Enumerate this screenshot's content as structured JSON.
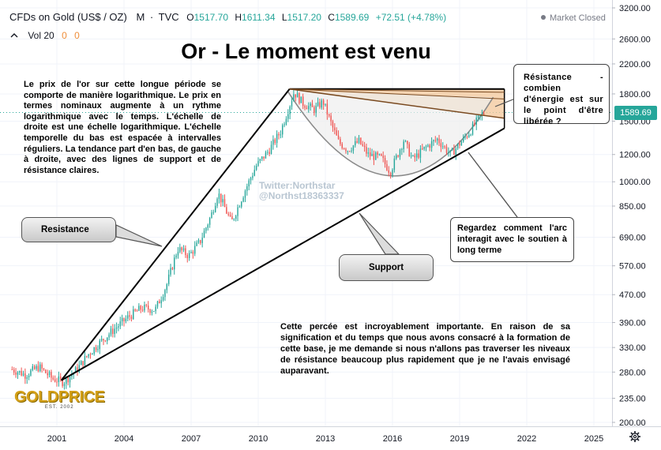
{
  "header": {
    "symbol": "CFDs on Gold (US$ / OZ)",
    "interval": "M",
    "source": "TVC",
    "open_label": "O",
    "open": "1517.70",
    "high_label": "H",
    "high": "1611.34",
    "low_label": "L",
    "low": "1517.20",
    "close_label": "C",
    "close": "1589.69",
    "change": "+72.51 (+4.78%)",
    "market_status": "Market Closed"
  },
  "volume": {
    "label": "Vol 20",
    "v1": "0",
    "v2": "0"
  },
  "annotations": {
    "title": "Or - Le moment est venu",
    "intro": "Le prix de l'or sur cette longue période se comporte de manière logarithmique. Le prix en termes nominaux augmente à un rythme logarithmique avec le temps. L'échelle de droite est une échelle logarithmique. L'échelle temporelle du bas est espacée à intervalles réguliers. La tendance part d'en bas, de gauche à droite, avec des lignes de support et de résistance claires.",
    "resistance_callout": "Resistance",
    "support_callout": "Support",
    "resistance_box": "Résistance - combien d'énergie est sur le point d'être libérée ?",
    "arc_box": "Regardez comment l'arc interagit avec le soutien à long terme",
    "breakout_text": "Cette percée est incroyablement importante. En raison de sa signification et du temps que nous avons consacré à la formation de cette base, je me demande si nous n'allons pas traverser les niveaux de résistance beaucoup plus rapidement que je ne l'avais envisagé auparavant.",
    "watermark_line1": "Twitter:Northstar",
    "watermark_line2": "@Northst18363337"
  },
  "logo": {
    "word": "GOLDPRICE",
    "est": "EST. 2002"
  },
  "colors": {
    "up": "#26a69a",
    "down": "#ef5350",
    "zone_fill": "#f3c79a",
    "line": "#000000"
  },
  "chart_data": {
    "type": "candlestick",
    "timeframe": "monthly",
    "y_scale": "log",
    "ylim": [
      200,
      3200
    ],
    "y_ticks": [
      3200,
      2600,
      2200,
      1800,
      1500,
      1200,
      1000,
      850,
      690,
      570,
      470,
      390,
      330,
      280,
      235,
      200
    ],
    "y_tick_labels": [
      "3200.00",
      "2600.00",
      "2200.00",
      "1800.00",
      "1500.00",
      "1200.00",
      "1000.00",
      "850.00",
      "690.00",
      "570.00",
      "470.00",
      "390.00",
      "330.00",
      "280.00",
      "235.00",
      "200.00"
    ],
    "x_ticks": [
      2001,
      2004,
      2007,
      2010,
      2013,
      2016,
      2019,
      2022,
      2025
    ],
    "xlim": [
      1999.0,
      2025.6
    ],
    "last_price": "1589.69",
    "price_anchors": [
      [
        1999.0,
        285
      ],
      [
        1999.6,
        275
      ],
      [
        2000.2,
        290
      ],
      [
        2000.8,
        268
      ],
      [
        2001.3,
        262
      ],
      [
        2001.9,
        285
      ],
      [
        2002.4,
        315
      ],
      [
        2003.0,
        345
      ],
      [
        2003.6,
        375
      ],
      [
        2004.2,
        405
      ],
      [
        2004.8,
        430
      ],
      [
        2005.4,
        425
      ],
      [
        2005.9,
        500
      ],
      [
        2006.4,
        640
      ],
      [
        2006.9,
        610
      ],
      [
        2007.4,
        670
      ],
      [
        2007.9,
        800
      ],
      [
        2008.2,
        930
      ],
      [
        2008.8,
        760
      ],
      [
        2009.3,
        910
      ],
      [
        2009.9,
        1110
      ],
      [
        2010.5,
        1240
      ],
      [
        2011.0,
        1400
      ],
      [
        2011.6,
        1820
      ],
      [
        2012.0,
        1690
      ],
      [
        2012.5,
        1620
      ],
      [
        2012.9,
        1710
      ],
      [
        2013.3,
        1450
      ],
      [
        2013.6,
        1300
      ],
      [
        2014.0,
        1240
      ],
      [
        2014.5,
        1310
      ],
      [
        2014.9,
        1200
      ],
      [
        2015.5,
        1170
      ],
      [
        2015.9,
        1070
      ],
      [
        2016.5,
        1320
      ],
      [
        2016.9,
        1160
      ],
      [
        2017.5,
        1260
      ],
      [
        2018.0,
        1330
      ],
      [
        2018.6,
        1200
      ],
      [
        2019.0,
        1290
      ],
      [
        2019.5,
        1410
      ],
      [
        2019.8,
        1510
      ],
      [
        2020.1,
        1590
      ]
    ],
    "trendlines": {
      "resistance_up": [
        [
          2001.2,
          265
        ],
        [
          2011.4,
          1860
        ]
      ],
      "support": [
        [
          2001.2,
          265
        ],
        [
          2021.0,
          1430
        ]
      ],
      "resistance_top": [
        [
          2011.4,
          1860
        ],
        [
          2021.0,
          1860
        ]
      ],
      "resistance_fan": [
        [
          2011.4,
          1860
        ],
        [
          2021.0,
          1530
        ]
      ]
    },
    "arc": [
      [
        2011.3,
        1840
      ],
      [
        2016.0,
        1040
      ],
      [
        2020.5,
        1760
      ]
    ]
  }
}
